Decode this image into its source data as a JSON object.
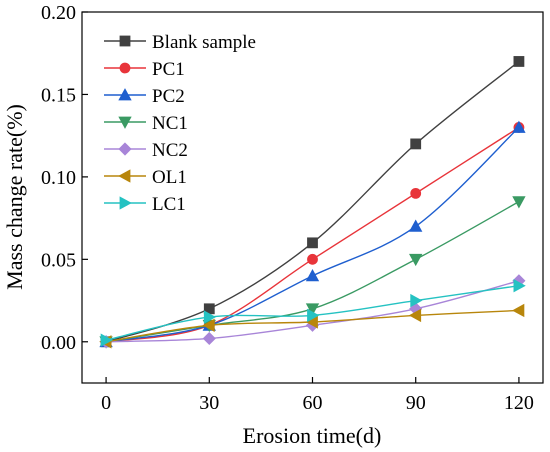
{
  "chart_data": {
    "type": "line",
    "x": [
      0,
      30,
      60,
      90,
      120
    ],
    "xlabel": "Erosion time(d)",
    "ylabel": "Mass change rate(%)",
    "xlim": [
      -7,
      127
    ],
    "ylim": [
      -0.025,
      0.2
    ],
    "xticks": [
      0,
      30,
      60,
      90,
      120
    ],
    "yticks": [
      0.0,
      0.05,
      0.1,
      0.15,
      0.2
    ],
    "ytick_labels": [
      "0.00",
      "0.05",
      "0.10",
      "0.15",
      "0.20"
    ],
    "legend_position": "top-left",
    "series": [
      {
        "name": "Blank sample",
        "values": [
          0.0,
          0.02,
          0.06,
          0.12,
          0.17
        ],
        "color": "#404040",
        "marker": "square"
      },
      {
        "name": "PC1",
        "values": [
          0.0,
          0.01,
          0.05,
          0.09,
          0.13
        ],
        "color": "#e8343a",
        "marker": "circle"
      },
      {
        "name": "PC2",
        "values": [
          0.0,
          0.01,
          0.04,
          0.07,
          0.13
        ],
        "color": "#1f5fcf",
        "marker": "triangle-up"
      },
      {
        "name": "NC1",
        "values": [
          0.0,
          0.01,
          0.02,
          0.05,
          0.085
        ],
        "color": "#3a9a63",
        "marker": "triangle-down"
      },
      {
        "name": "NC2",
        "values": [
          0.0,
          0.002,
          0.01,
          0.02,
          0.037
        ],
        "color": "#a885d8",
        "marker": "diamond"
      },
      {
        "name": "OL1",
        "values": [
          0.0,
          0.01,
          0.012,
          0.016,
          0.019
        ],
        "color": "#b8860b",
        "marker": "triangle-left"
      },
      {
        "name": "LC1",
        "values": [
          0.001,
          0.015,
          0.016,
          0.025,
          0.034
        ],
        "color": "#25c2c2",
        "marker": "triangle-right"
      }
    ]
  }
}
